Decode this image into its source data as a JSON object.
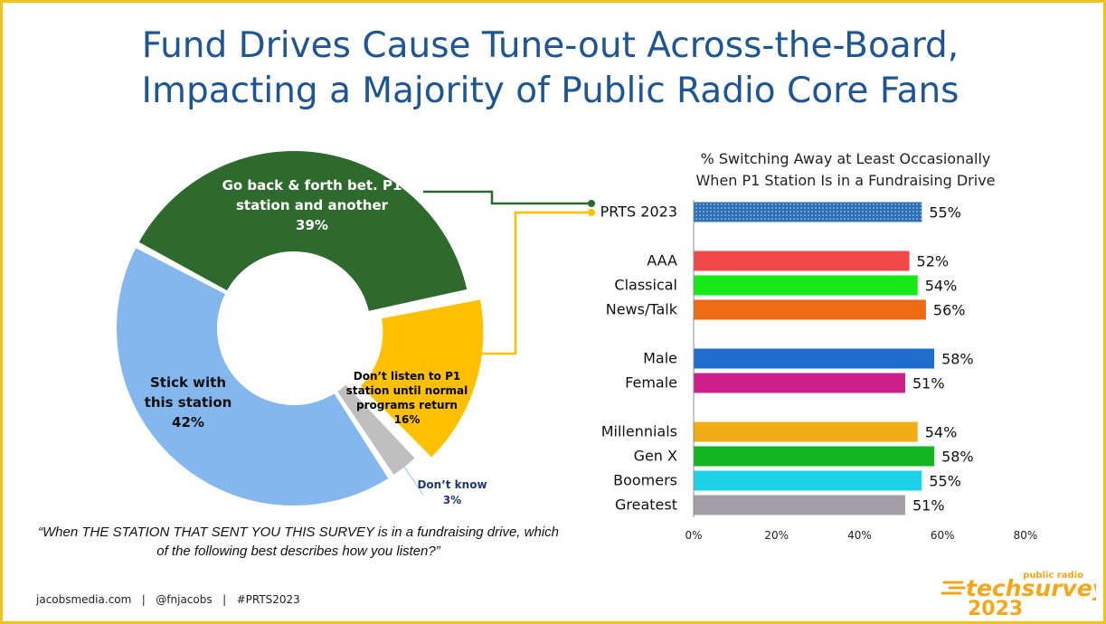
{
  "title": {
    "line1": "Fund Drives Cause Tune-out Across-the-Board,",
    "line2": "Impacting a Majority of Public Radio Core Fans"
  },
  "question": "“When THE STATION THAT SENT YOU THIS SURVEY is in a fundraising drive, which of the following best describes how you listen?”",
  "footer": {
    "site": "jacobsmedia.com",
    "sep1": "|",
    "handle": "@fnjacobs",
    "sep2": "|",
    "hashtag": "#PRTS2023"
  },
  "logo": {
    "top": "public radio",
    "main": "techsurvey",
    "year": "2023"
  },
  "colors": {
    "accent_border": "#f2c21b",
    "title": "#1f5591",
    "donut_back_forth": "#2e6a2d",
    "donut_dont_listen": "#ffc000",
    "donut_dont_know": "#bfbfbf",
    "donut_stick": "#85b7ef"
  },
  "chart_data": [
    {
      "type": "pie",
      "variant": "donut",
      "slices": [
        {
          "label_lines": [
            "Go back & forth bet. P1",
            "station and another"
          ],
          "value_label": "39%",
          "value": 39,
          "color": "#2e6a2d",
          "text_color": "#ffffff",
          "exploded": false
        },
        {
          "label_lines": [
            "Don’t listen to P1",
            "station until normal",
            "programs return"
          ],
          "value_label": "16%",
          "value": 16,
          "color": "#ffc000",
          "text_color": "#000000",
          "exploded": true
        },
        {
          "label_lines": [
            "Don’t know"
          ],
          "value_label": "3%",
          "value": 3,
          "color": "#bfbfbf",
          "text_color": "#1f3b6e",
          "exploded": false
        },
        {
          "label_lines": [
            "Stick with",
            "this station"
          ],
          "value_label": "42%",
          "value": 42,
          "color": "#85b7ef",
          "text_color": "#111111",
          "exploded": false
        }
      ]
    },
    {
      "type": "bar",
      "orientation": "horizontal",
      "title_lines": [
        "% Switching Away at Least Occasionally",
        "When P1 Station Is in a Fundraising Drive"
      ],
      "xlim": [
        0,
        80
      ],
      "x_ticks": [
        "0%",
        "20%",
        "40%",
        "60%",
        "80%"
      ],
      "x_tick_values": [
        0,
        20,
        40,
        60,
        80
      ],
      "groups": [
        [
          {
            "label": "PRTS 2023",
            "value": 55,
            "value_label": "55%",
            "color": "#2f6db5",
            "pattern": "dots"
          }
        ],
        [
          {
            "label": "AAA",
            "value": 52,
            "value_label": "52%",
            "color": "#f24848"
          },
          {
            "label": "Classical",
            "value": 54,
            "value_label": "54%",
            "color": "#17e817"
          },
          {
            "label": "News/Talk",
            "value": 56,
            "value_label": "56%",
            "color": "#ee6a14"
          }
        ],
        [
          {
            "label": "Male",
            "value": 58,
            "value_label": "58%",
            "color": "#1e6ccc"
          },
          {
            "label": "Female",
            "value": 51,
            "value_label": "51%",
            "color": "#cc1f8c"
          }
        ],
        [
          {
            "label": "Millennials",
            "value": 54,
            "value_label": "54%",
            "color": "#f2ac18"
          },
          {
            "label": "Gen X",
            "value": 58,
            "value_label": "58%",
            "color": "#12b51f"
          },
          {
            "label": "Boomers",
            "value": 55,
            "value_label": "55%",
            "color": "#1dd2e8"
          },
          {
            "label": "Greatest",
            "value": 51,
            "value_label": "51%",
            "color": "#a49fa7"
          }
        ]
      ]
    }
  ]
}
